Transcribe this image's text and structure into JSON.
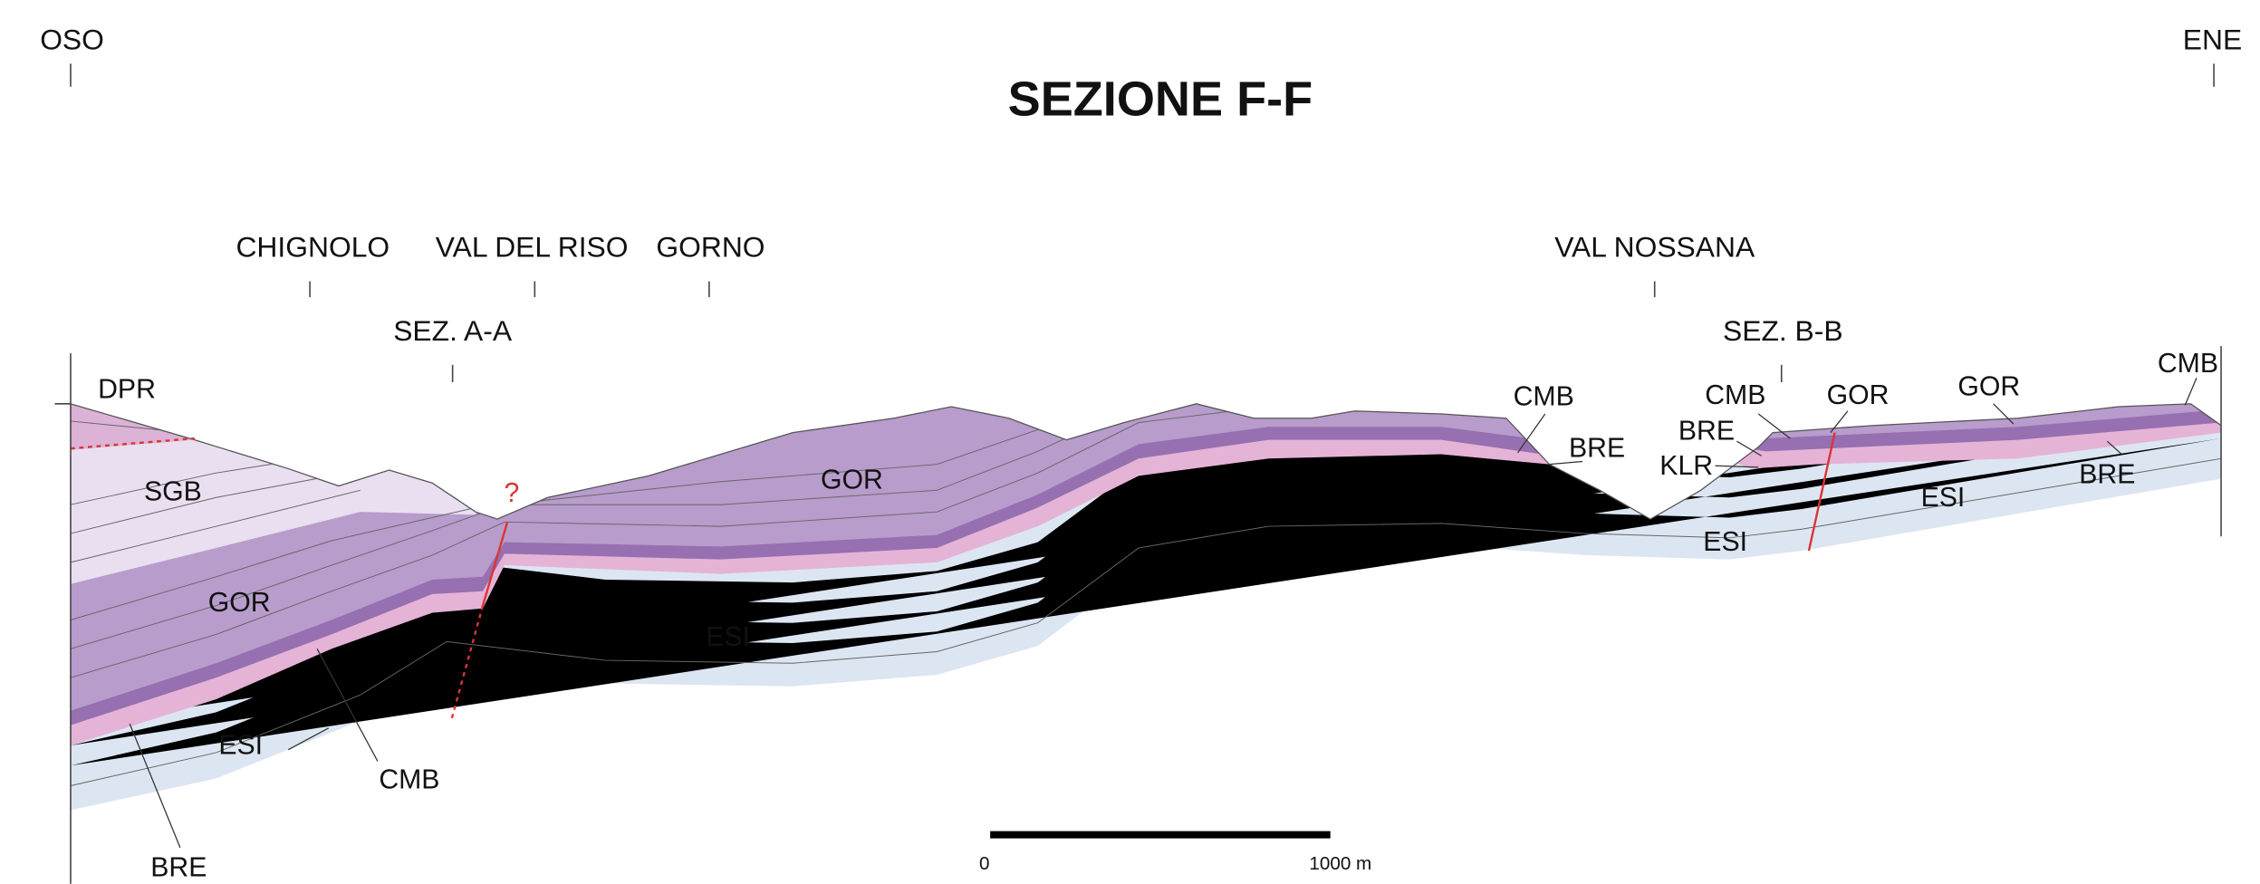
{
  "header": {
    "title": "SEZIONE F-F",
    "left_direction": "OSO",
    "right_direction": "ENE"
  },
  "localities": [
    {
      "label": "CHIGNOLO"
    },
    {
      "label": "VAL DEL RISO"
    },
    {
      "label": "GORNO"
    },
    {
      "label": "VAL NOSSANA"
    }
  ],
  "sections": [
    {
      "label": "SEZ. A-A"
    },
    {
      "label": "SEZ. B-B"
    }
  ],
  "formation_labels": [
    "DPR",
    "SGB",
    "GOR",
    "ESI",
    "CMB",
    "BRE",
    "GOR",
    "ESI",
    "CMB",
    "BRE",
    "CMB",
    "BRE",
    "KLR",
    "GOR",
    "GOR",
    "ESI",
    "ESI",
    "BRE",
    "CMB"
  ],
  "fault_query": "?",
  "scale": {
    "start": "0",
    "end": "1000 m"
  }
}
